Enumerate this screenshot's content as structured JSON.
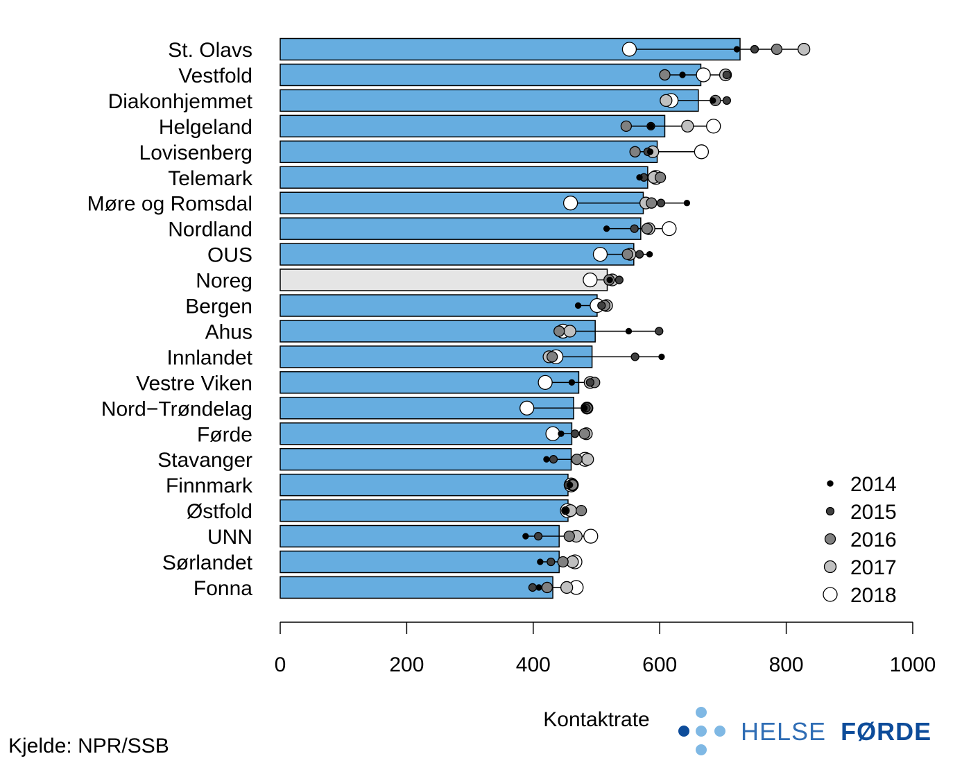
{
  "chart_data": {
    "type": "bar",
    "title": "",
    "xlabel": "Kontaktrate",
    "ylabel": "",
    "xlim": [
      0,
      1000
    ],
    "x_ticks": [
      "0",
      "200",
      "400",
      "600",
      "800",
      "1000"
    ],
    "legend_position": "bottom-right",
    "grid": false,
    "colors": {
      "bar": "#66ADE0",
      "national_bar": "#E5E5E5",
      "2014": "#000000",
      "2015": "#404040",
      "2016": "#808080",
      "2017": "#C0C0C0",
      "2018": "#FFFFFF"
    },
    "categories": [
      "St. Olavs",
      "Vestfold",
      "Diakonhjemmet",
      "Helgeland",
      "Lovisenberg",
      "Telemark",
      "Møre og Romsdal",
      "Nordland",
      "OUS",
      "Noreg",
      "Bergen",
      "Ahus",
      "Innlandet",
      "Vestre Viken",
      "Nord−Trøndelag",
      "Førde",
      "Stavanger",
      "Finnmark",
      "Østfold",
      "UNN",
      "Sørlandet",
      "Fonna"
    ],
    "highlight_category": "Noreg",
    "bar_values": [
      727,
      665,
      661,
      608,
      596,
      581,
      574,
      570,
      559,
      517,
      501,
      498,
      493,
      472,
      464,
      461,
      460,
      455,
      455,
      441,
      441,
      431
    ],
    "series": [
      {
        "name": "2014",
        "values": [
          722,
          636,
          684,
          586,
          585,
          568,
          643,
          516,
          584,
          521,
          471,
          551,
          603,
          461,
          481,
          444,
          421,
          458,
          451,
          388,
          411,
          409
        ]
      },
      {
        "name": "2015",
        "values": [
          750,
          706,
          706,
          586,
          581,
          575,
          602,
          560,
          568,
          536,
          508,
          599,
          561,
          490,
          484,
          466,
          432,
          455,
          451,
          408,
          428,
          399
        ]
      },
      {
        "name": "2016",
        "values": [
          785,
          608,
          688,
          547,
          561,
          601,
          587,
          580,
          549,
          520,
          513,
          441,
          430,
          497,
          485,
          481,
          469,
          462,
          476,
          457,
          447,
          422
        ]
      },
      {
        "name": "2017",
        "values": [
          828,
          704,
          610,
          644,
          589,
          591,
          578,
          583,
          553,
          525,
          516,
          458,
          425,
          490,
          485,
          484,
          486,
          462,
          459,
          468,
          462,
          453
        ]
      },
      {
        "name": "2018",
        "values": [
          552,
          669,
          618,
          685,
          666,
          594,
          459,
          615,
          506,
          490,
          501,
          447,
          436,
          419,
          390,
          431,
          482,
          460,
          454,
          491,
          466,
          468
        ]
      }
    ],
    "legend": [
      "2014",
      "2015",
      "2016",
      "2017",
      "2018"
    ]
  },
  "footer": {
    "source": "Kjelde: NPR/SSB",
    "logo_word1": "HELSE",
    "logo_word2": "FØRDE"
  }
}
